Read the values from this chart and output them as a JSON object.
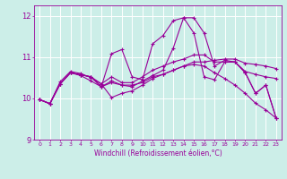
{
  "xlabel": "Windchill (Refroidissement éolien,°C)",
  "background_color": "#cceee8",
  "grid_color": "#ffffff",
  "line_color": "#990099",
  "ylim": [
    9,
    12.25
  ],
  "xlim": [
    -0.5,
    23.5
  ],
  "yticks": [
    9,
    10,
    11,
    12
  ],
  "xticks": [
    0,
    1,
    2,
    3,
    4,
    5,
    6,
    7,
    8,
    9,
    10,
    11,
    12,
    13,
    14,
    15,
    16,
    17,
    18,
    19,
    20,
    21,
    22,
    23
  ],
  "series": [
    [
      9.97,
      9.87,
      10.35,
      10.62,
      10.57,
      10.52,
      10.28,
      10.42,
      10.32,
      10.28,
      10.42,
      10.55,
      10.68,
      11.22,
      11.95,
      11.95,
      11.58,
      10.78,
      10.92,
      10.88,
      10.62,
      10.12,
      10.32,
      9.52
    ],
    [
      9.97,
      9.87,
      10.35,
      10.62,
      10.55,
      10.42,
      10.28,
      10.38,
      10.32,
      10.32,
      10.38,
      10.52,
      10.58,
      10.68,
      10.78,
      10.88,
      10.88,
      10.92,
      10.95,
      10.95,
      10.85,
      10.82,
      10.78,
      10.72
    ],
    [
      9.97,
      9.87,
      10.35,
      10.62,
      10.57,
      10.52,
      10.28,
      11.08,
      11.18,
      10.52,
      10.45,
      11.32,
      11.52,
      11.88,
      11.95,
      11.58,
      10.52,
      10.45,
      10.88,
      10.88,
      10.62,
      10.12,
      10.32,
      9.52
    ],
    [
      9.97,
      9.87,
      10.35,
      10.62,
      10.57,
      10.52,
      10.35,
      10.52,
      10.38,
      10.38,
      10.52,
      10.68,
      10.78,
      10.88,
      10.95,
      11.05,
      11.05,
      10.88,
      10.88,
      10.88,
      10.65,
      10.58,
      10.52,
      10.48
    ],
    [
      9.97,
      9.87,
      10.4,
      10.65,
      10.6,
      10.5,
      10.35,
      10.02,
      10.12,
      10.18,
      10.32,
      10.48,
      10.58,
      10.68,
      10.78,
      10.82,
      10.78,
      10.62,
      10.48,
      10.32,
      10.12,
      9.88,
      9.72,
      9.52
    ]
  ]
}
